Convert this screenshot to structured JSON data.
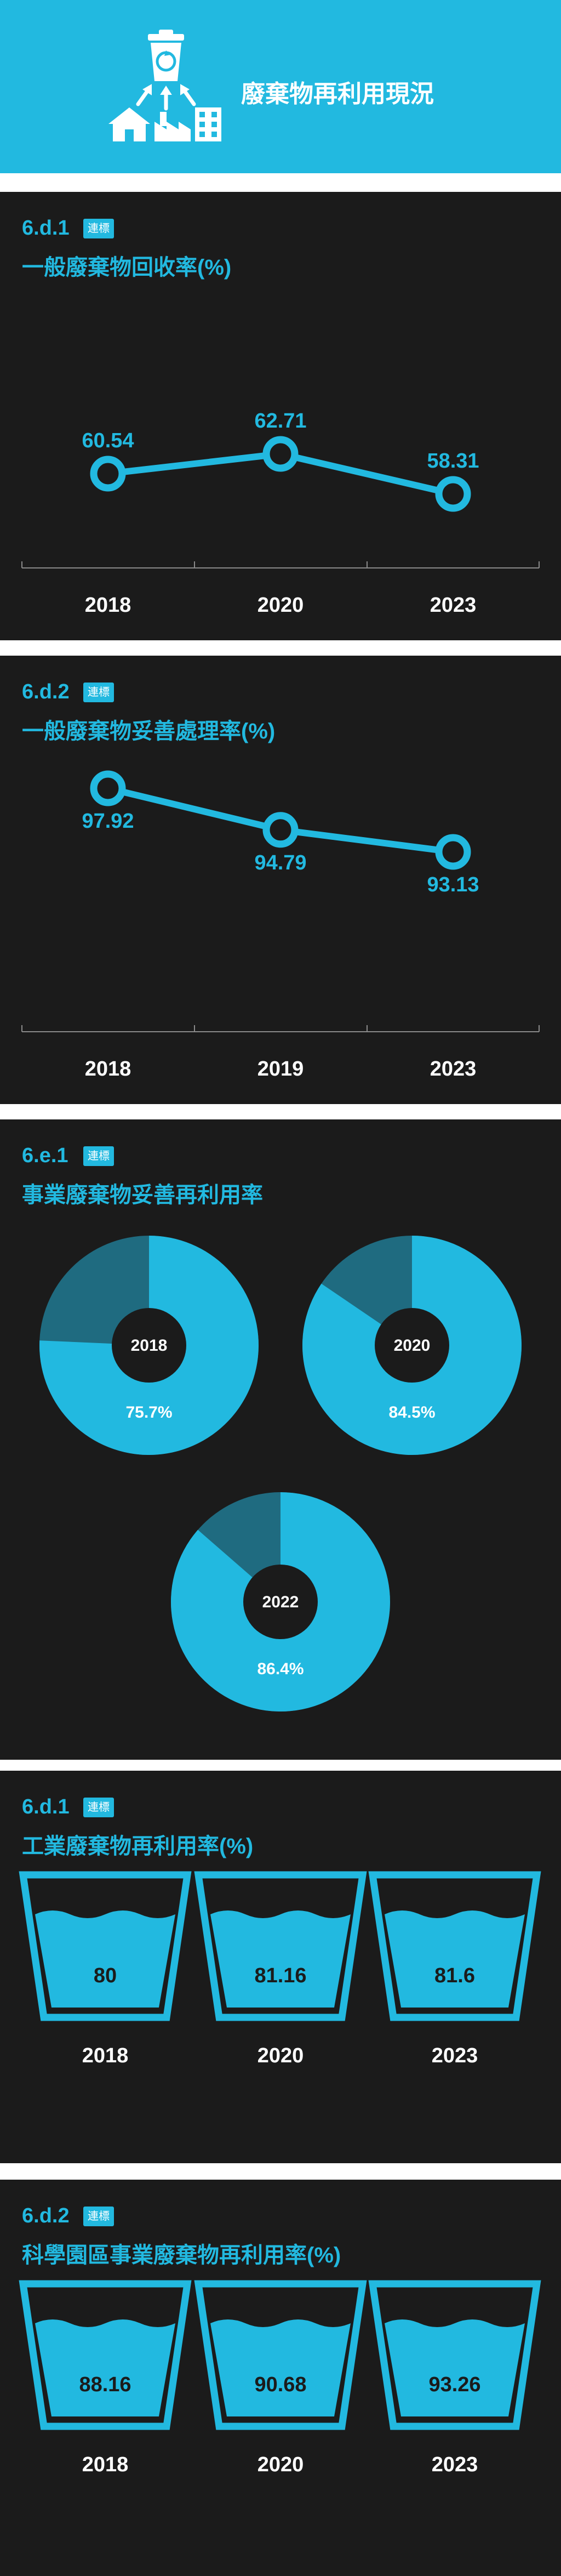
{
  "header": {
    "title": "廢棄物再利用現況",
    "icon": "recycle-bin-icon"
  },
  "sections": [
    {
      "code": "6.d.1",
      "badge": "連標",
      "title": "一般廢棄物回收率(%)"
    },
    {
      "code": "6.d.2",
      "badge": "連標",
      "title": "一般廢棄物妥善處理率(%)"
    },
    {
      "code": "6.e.1",
      "badge": "連標",
      "title": "事業廢棄物妥善再利用率"
    },
    {
      "code": "6.d.1",
      "badge": "連標",
      "title": "工業廢棄物再利用率(%)"
    },
    {
      "code": "6.d.2",
      "badge": "連標",
      "title": "科學園區事業廢棄物再利用率(%)"
    }
  ],
  "colors": {
    "accent": "#22b9e0",
    "dark": "#1b1b1b",
    "donut_remainder": "#1f6b80",
    "axis": "#8a8a8a"
  },
  "chart_data": [
    {
      "type": "line",
      "title": "一般廢棄物回收率(%)",
      "categories": [
        "2018",
        "2020",
        "2023"
      ],
      "series": [
        {
          "values": [
            60.54,
            62.71,
            58.31
          ],
          "labels": [
            "60.54",
            "62.71",
            "58.31"
          ]
        }
      ]
    },
    {
      "type": "line",
      "title": "一般廢棄物妥善處理率(%)",
      "categories": [
        "2018",
        "2019",
        "2023"
      ],
      "series": [
        {
          "values": [
            97.92,
            94.79,
            93.13
          ],
          "labels": [
            "97.92",
            "94.79",
            "93.13"
          ]
        }
      ]
    },
    {
      "type": "pie",
      "title": "事業廢棄物妥善再利用率",
      "categories": [
        "2018",
        "2020",
        "2022"
      ],
      "values": [
        75.7,
        84.5,
        86.4
      ],
      "labels": [
        "75.7%",
        "84.5%",
        "86.4%"
      ]
    },
    {
      "type": "bar",
      "title": "工業廢棄物再利用率(%)",
      "categories": [
        "2018",
        "2020",
        "2023"
      ],
      "values": [
        80,
        81.16,
        81.6
      ],
      "labels": [
        "80",
        "81.16",
        "81.6"
      ]
    },
    {
      "type": "bar",
      "title": "科學園區事業廢棄物再利用率(%)",
      "categories": [
        "2018",
        "2020",
        "2023"
      ],
      "values": [
        88.16,
        90.68,
        93.26
      ],
      "labels": [
        "88.16",
        "90.68",
        "93.26"
      ]
    }
  ]
}
